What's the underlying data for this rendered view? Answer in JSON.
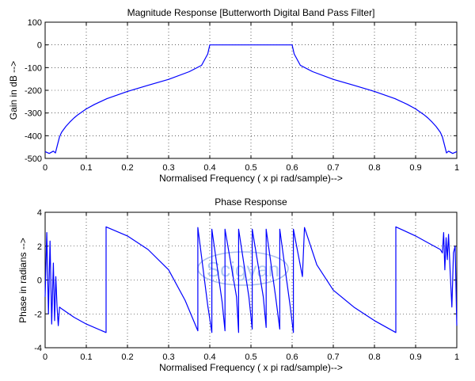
{
  "chart_data": [
    {
      "type": "line",
      "title": "Magnitude Response [Butterworth Digital Band Pass Filter]",
      "xlabel": "Normalised Frequency  ( x pi rad/sample)-->",
      "ylabel": "Gain in dB -->",
      "xlim": [
        0,
        1
      ],
      "ylim": [
        -500,
        100
      ],
      "grid": true,
      "x_ticks": [
        "0",
        "0.1",
        "0.2",
        "0.3",
        "0.4",
        "0.5",
        "0.6",
        "0.7",
        "0.8",
        "0.9",
        "1"
      ],
      "y_ticks": [
        "100",
        "0",
        "-100",
        "-200",
        "-300",
        "-400",
        "-500"
      ],
      "series": [
        {
          "color": "#0000ff",
          "x": [
            0.0,
            0.01,
            0.02,
            0.025,
            0.03,
            0.035,
            0.04,
            0.05,
            0.06,
            0.07,
            0.08,
            0.1,
            0.12,
            0.15,
            0.2,
            0.25,
            0.3,
            0.35,
            0.38,
            0.395,
            0.4,
            0.45,
            0.5,
            0.55,
            0.6,
            0.605,
            0.62,
            0.65,
            0.7,
            0.75,
            0.8,
            0.85,
            0.88,
            0.9,
            0.92,
            0.93,
            0.94,
            0.95,
            0.96,
            0.965,
            0.97,
            0.975,
            0.98,
            0.99,
            1.0
          ],
          "y": [
            -470,
            -478,
            -468,
            -476,
            -440,
            -405,
            -385,
            -360,
            -340,
            -322,
            -307,
            -282,
            -262,
            -237,
            -205,
            -178,
            -152,
            -118,
            -90,
            -40,
            0,
            0,
            0,
            0,
            0,
            -40,
            -90,
            -118,
            -152,
            -178,
            -205,
            -237,
            -262,
            -282,
            -307,
            -322,
            -340,
            -360,
            -385,
            -405,
            -440,
            -476,
            -468,
            -478,
            -470
          ]
        }
      ]
    },
    {
      "type": "line",
      "title": "Phase Response",
      "xlabel": "Normalised Frequency  ( x pi rad/sample)-->",
      "ylabel": "Phase in radians -->",
      "xlim": [
        0,
        1
      ],
      "ylim": [
        -4,
        4
      ],
      "grid": true,
      "x_ticks": [
        "0",
        "0.1",
        "0.2",
        "0.3",
        "0.4",
        "0.5",
        "0.6",
        "0.7",
        "0.8",
        "0.9",
        "1"
      ],
      "y_ticks": [
        "4",
        "2",
        "0",
        "-2",
        "-4"
      ],
      "series": [
        {
          "color": "#0000ff",
          "x": [
            0.0,
            0.004,
            0.008,
            0.012,
            0.016,
            0.02,
            0.023,
            0.026,
            0.029,
            0.032,
            0.035,
            0.04,
            0.07,
            0.1,
            0.148,
            0.148,
            0.2,
            0.25,
            0.3,
            0.34,
            0.371,
            0.371,
            0.395,
            0.405,
            0.405,
            0.43,
            0.437,
            0.437,
            0.465,
            0.47,
            0.47,
            0.495,
            0.503,
            0.503,
            0.53,
            0.537,
            0.537,
            0.56,
            0.57,
            0.57,
            0.595,
            0.603,
            0.603,
            0.625,
            0.63,
            0.63,
            0.66,
            0.7,
            0.75,
            0.8,
            0.852,
            0.852,
            0.9,
            0.93,
            0.96,
            0.965,
            0.968,
            0.971,
            0.974,
            0.977,
            0.98,
            0.984,
            0.988,
            0.992,
            0.996,
            1.0
          ],
          "y": [
            -1.0,
            2.8,
            -2.0,
            2.3,
            -2.6,
            1.0,
            -2.4,
            0.2,
            -1.6,
            -2.7,
            -1.6,
            -1.7,
            -2.2,
            -2.6,
            -3.1,
            3.14,
            2.6,
            1.8,
            0.6,
            -1.2,
            -3.0,
            3.1,
            -1.5,
            -3.1,
            3.0,
            -1.3,
            -3.0,
            3.0,
            -1.0,
            -3.1,
            3.0,
            -1.0,
            -2.9,
            3.0,
            -1.0,
            -2.8,
            3.0,
            -1.0,
            -2.9,
            3.0,
            -1.5,
            -3.1,
            3.0,
            0.2,
            3.1,
            3.1,
            0.9,
            -0.6,
            -1.6,
            -2.4,
            -3.1,
            3.14,
            2.6,
            2.2,
            1.8,
            1.6,
            2.8,
            0.6,
            2.5,
            1.2,
            2.7,
            0.4,
            -1.6,
            1.6,
            2.0,
            -2.7
          ]
        }
      ],
      "watermark": "Scigyan"
    }
  ]
}
